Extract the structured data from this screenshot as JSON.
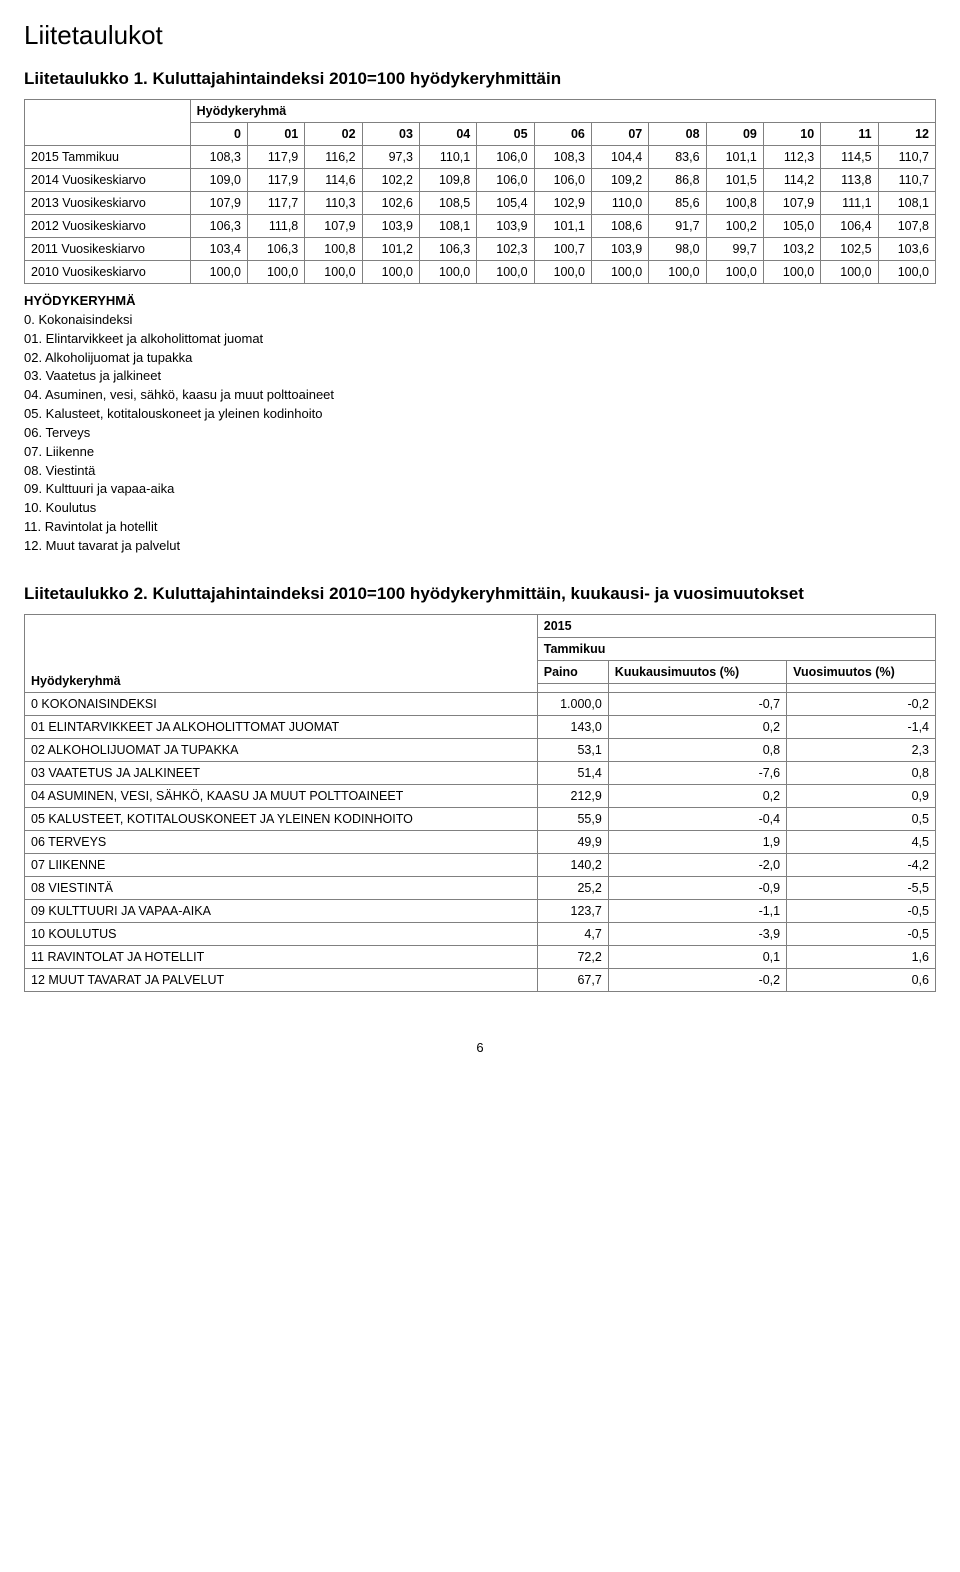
{
  "page_title": "Liitetaulukot",
  "table1": {
    "title": "Liitetaulukko 1. Kuluttajahintaindeksi 2010=100 hyödykeryhmittäin",
    "group_header": "Hyödykeryhmä",
    "columns": [
      "0",
      "01",
      "02",
      "03",
      "04",
      "05",
      "06",
      "07",
      "08",
      "09",
      "10",
      "11",
      "12"
    ],
    "rows": [
      {
        "label": "2015 Tammikuu",
        "vals": [
          "108,3",
          "117,9",
          "116,2",
          "97,3",
          "110,1",
          "106,0",
          "108,3",
          "104,4",
          "83,6",
          "101,1",
          "112,3",
          "114,5",
          "110,7"
        ]
      },
      {
        "label": "2014 Vuosikeskiarvo",
        "vals": [
          "109,0",
          "117,9",
          "114,6",
          "102,2",
          "109,8",
          "106,0",
          "106,0",
          "109,2",
          "86,8",
          "101,5",
          "114,2",
          "113,8",
          "110,7"
        ]
      },
      {
        "label": "2013 Vuosikeskiarvo",
        "vals": [
          "107,9",
          "117,7",
          "110,3",
          "102,6",
          "108,5",
          "105,4",
          "102,9",
          "110,0",
          "85,6",
          "100,8",
          "107,9",
          "111,1",
          "108,1"
        ]
      },
      {
        "label": "2012 Vuosikeskiarvo",
        "vals": [
          "106,3",
          "111,8",
          "107,9",
          "103,9",
          "108,1",
          "103,9",
          "101,1",
          "108,6",
          "91,7",
          "100,2",
          "105,0",
          "106,4",
          "107,8"
        ]
      },
      {
        "label": "2011 Vuosikeskiarvo",
        "vals": [
          "103,4",
          "106,3",
          "100,8",
          "101,2",
          "106,3",
          "102,3",
          "100,7",
          "103,9",
          "98,0",
          "99,7",
          "103,2",
          "102,5",
          "103,6"
        ]
      },
      {
        "label": "2010 Vuosikeskiarvo",
        "vals": [
          "100,0",
          "100,0",
          "100,0",
          "100,0",
          "100,0",
          "100,0",
          "100,0",
          "100,0",
          "100,0",
          "100,0",
          "100,0",
          "100,0",
          "100,0"
        ]
      }
    ]
  },
  "legend": {
    "heading": "HYÖDYKERYHMÄ",
    "items": [
      "0. Kokonaisindeksi",
      "01. Elintarvikkeet ja alkoholittomat juomat",
      "02. Alkoholijuomat ja tupakka",
      "03. Vaatetus ja jalkineet",
      "04. Asuminen, vesi, sähkö, kaasu ja muut polttoaineet",
      "05. Kalusteet, kotitalouskoneet ja yleinen kodinhoito",
      "06. Terveys",
      "07. Liikenne",
      "08. Viestintä",
      "09. Kulttuuri ja vapaa-aika",
      "10. Koulutus",
      "11. Ravintolat ja hotellit",
      "12. Muut tavarat ja palvelut"
    ]
  },
  "table2": {
    "title": "Liitetaulukko 2. Kuluttajahintaindeksi 2010=100 hyödykeryhmittäin, kuukausi- ja vuosimuutokset",
    "year": "2015",
    "month": "Tammikuu",
    "col_paino": "Paino",
    "col_kk": "Kuukausimuutos (%)",
    "col_vuosi": "Vuosimuutos (%)",
    "rowhead": "Hyödykeryhmä",
    "rows": [
      {
        "label": "0 KOKONAISINDEKSI",
        "paino": "1.000,0",
        "kk": "-0,7",
        "v": "-0,2"
      },
      {
        "label": "01 ELINTARVIKKEET JA ALKOHOLITTOMAT JUOMAT",
        "paino": "143,0",
        "kk": "0,2",
        "v": "-1,4"
      },
      {
        "label": "02 ALKOHOLIJUOMAT JA TUPAKKA",
        "paino": "53,1",
        "kk": "0,8",
        "v": "2,3"
      },
      {
        "label": "03 VAATETUS JA JALKINEET",
        "paino": "51,4",
        "kk": "-7,6",
        "v": "0,8"
      },
      {
        "label": "04 ASUMINEN, VESI, SÄHKÖ, KAASU JA MUUT POLTTOAINEET",
        "paino": "212,9",
        "kk": "0,2",
        "v": "0,9"
      },
      {
        "label": "05 KALUSTEET, KOTITALOUSKONEET JA YLEINEN KODINHOITO",
        "paino": "55,9",
        "kk": "-0,4",
        "v": "0,5"
      },
      {
        "label": "06 TERVEYS",
        "paino": "49,9",
        "kk": "1,9",
        "v": "4,5"
      },
      {
        "label": "07 LIIKENNE",
        "paino": "140,2",
        "kk": "-2,0",
        "v": "-4,2"
      },
      {
        "label": "08 VIESTINTÄ",
        "paino": "25,2",
        "kk": "-0,9",
        "v": "-5,5"
      },
      {
        "label": "09 KULTTUURI JA VAPAA-AIKA",
        "paino": "123,7",
        "kk": "-1,1",
        "v": "-0,5"
      },
      {
        "label": "10 KOULUTUS",
        "paino": "4,7",
        "kk": "-3,9",
        "v": "-0,5"
      },
      {
        "label": "11 RAVINTOLAT JA HOTELLIT",
        "paino": "72,2",
        "kk": "0,1",
        "v": "1,6"
      },
      {
        "label": "12 MUUT TAVARAT JA PALVELUT",
        "paino": "67,7",
        "kk": "-0,2",
        "v": "0,6"
      }
    ]
  },
  "page_number": "6"
}
